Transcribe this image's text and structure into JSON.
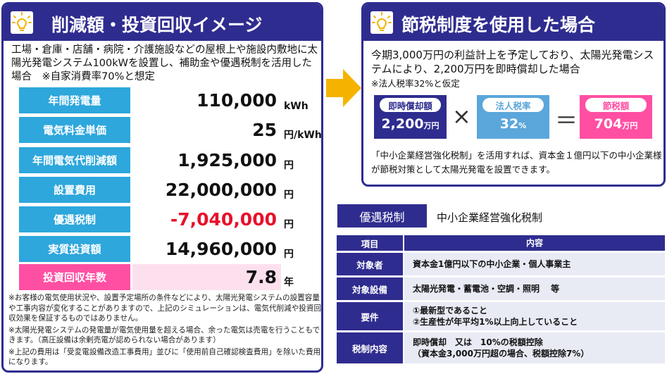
{
  "left": {
    "title": "削減額・投資回収イメージ",
    "intro": "工場・倉庫・店舗・病院・介護施設などの屋根上や施設内敷地に太陽光発電システム100kWを設置し、補助金や優遇税制を活用した場合　※自家消費率70%と想定",
    "rows": [
      {
        "label": "年間発電量",
        "value": "110,000",
        "unit": "kWh"
      },
      {
        "label": "電気料金単価",
        "value": "25",
        "unit": "円/kWh"
      },
      {
        "label": "年間電気代削減額",
        "value": "1,925,000",
        "unit": "円"
      },
      {
        "label": "設置費用",
        "value": "22,000,000",
        "unit": "円"
      },
      {
        "label": "優遇税制",
        "value": "-7,040,000",
        "unit": "円"
      },
      {
        "label": "実質投資額",
        "value": "14,960,000",
        "unit": "円"
      },
      {
        "label": "投資回収年数",
        "value": "7.8",
        "unit": "年"
      }
    ],
    "notes": [
      "※お客様の電気使用状況や、設置予定場所の条件などにより、太陽光発電システムの設置容量や工事内容が変化することがありますので、上記のシミュレーションは、電気代削減や投資回収効果を保証するものではありません。",
      "※太陽光発電システムの発電量が電気使用量を超える場合、余った電気は売電を行うこともできます。（高圧設備は余剰売電が認められない場合があります）",
      "※上記の費用は「受変電設備改造工事費用」並びに「使用前自己確認検査費用」を除いた費用になります。"
    ]
  },
  "right_top": {
    "title": "節税制度を使用した場合",
    "text": "今期3,000万円の利益計上を予定しており、太陽光発電システムにより、2,200万円を即時償却した場合",
    "note": "※法人税率32%と仮定",
    "calc": {
      "box1": {
        "caption": "即時償却額",
        "value": "2,200",
        "unit": "万円"
      },
      "op1": "×",
      "box2": {
        "caption": "法人税率",
        "value": "32",
        "unit": "%"
      },
      "op2": "＝",
      "box3": {
        "caption": "節税額",
        "value": "704",
        "unit": "万円"
      }
    },
    "footer": "「中小企業経営強化税制」を活用すれば、資本金１億円以下の中小企業様が節税対策として太陽光発電を設置できます。"
  },
  "right_bottom": {
    "tag": "優遇税制",
    "tag_title": "中小企業経営強化税制",
    "table": {
      "header": [
        "項目",
        "内容"
      ],
      "rows": [
        {
          "item": "対象者",
          "lines": [
            "資本金1億円以下の中小企業・個人事業主"
          ]
        },
        {
          "item": "対象設備",
          "lines": [
            "太陽光発電・蓄電池・空調・照明　 等"
          ]
        },
        {
          "item": "要件",
          "lines": [
            "①最新型であること",
            "②生産性が年平均1%以上向上していること"
          ]
        },
        {
          "item": "税制内容",
          "lines": [
            "即時償却　又は　10%の税額控除",
            "（資本金3,000万円超の場合、税額控除7%）"
          ]
        }
      ]
    }
  },
  "colors": {
    "navy": "#2f2c8f",
    "row_label": "#2ea7dc",
    "highlight": "#ff4fa3",
    "negative": "#e8102a",
    "arrow": "#f5b300"
  }
}
